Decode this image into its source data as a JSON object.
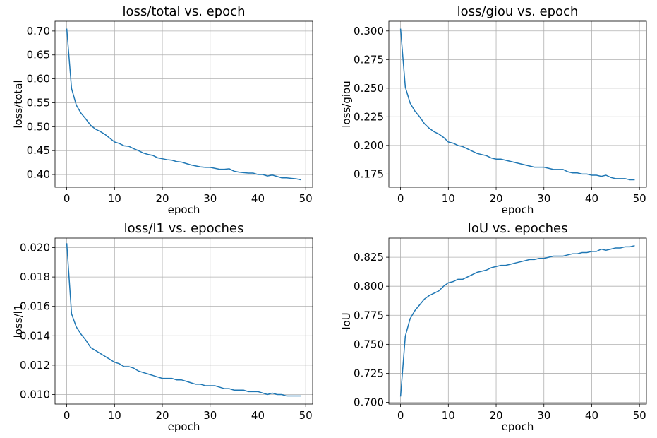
{
  "chart_data": [
    {
      "type": "line",
      "title": "loss/total vs. epoch",
      "xlabel": "epoch",
      "ylabel": "loss/total",
      "xlim": [
        -2.45,
        51.45
      ],
      "ylim": [
        0.3735,
        0.7205
      ],
      "xticks": [
        0,
        10,
        20,
        30,
        40,
        50
      ],
      "xtick_labels": [
        "0",
        "10",
        "20",
        "30",
        "40",
        "50"
      ],
      "yticks": [
        0.4,
        0.45,
        0.5,
        0.55,
        0.6,
        0.65,
        0.7
      ],
      "ytick_labels": [
        "0.40",
        "0.45",
        "0.50",
        "0.55",
        "0.60",
        "0.65",
        "0.70"
      ],
      "grid": true,
      "color": "#1f77b4",
      "x": [
        0,
        1,
        2,
        3,
        4,
        5,
        6,
        7,
        8,
        9,
        10,
        11,
        12,
        13,
        14,
        15,
        16,
        17,
        18,
        19,
        20,
        21,
        22,
        23,
        24,
        25,
        26,
        27,
        28,
        29,
        30,
        31,
        32,
        33,
        34,
        35,
        36,
        37,
        38,
        39,
        40,
        41,
        42,
        43,
        44,
        45,
        46,
        47,
        48,
        49
      ],
      "y": [
        0.705,
        0.58,
        0.545,
        0.528,
        0.516,
        0.503,
        0.495,
        0.49,
        0.484,
        0.476,
        0.468,
        0.465,
        0.46,
        0.459,
        0.454,
        0.45,
        0.445,
        0.442,
        0.44,
        0.435,
        0.433,
        0.431,
        0.43,
        0.427,
        0.426,
        0.423,
        0.42,
        0.418,
        0.416,
        0.415,
        0.415,
        0.413,
        0.411,
        0.411,
        0.412,
        0.407,
        0.405,
        0.404,
        0.403,
        0.403,
        0.4,
        0.4,
        0.397,
        0.399,
        0.396,
        0.393,
        0.393,
        0.392,
        0.391,
        0.389
      ]
    },
    {
      "type": "line",
      "title": "loss/giou vs. epoch",
      "xlabel": "epoch",
      "ylabel": "loss/giou",
      "xlim": [
        -2.45,
        51.45
      ],
      "ylim": [
        0.1635,
        0.3085
      ],
      "xticks": [
        0,
        10,
        20,
        30,
        40,
        50
      ],
      "xtick_labels": [
        "0",
        "10",
        "20",
        "30",
        "40",
        "50"
      ],
      "yticks": [
        0.175,
        0.2,
        0.225,
        0.25,
        0.275,
        0.3
      ],
      "ytick_labels": [
        "0.175",
        "0.200",
        "0.225",
        "0.250",
        "0.275",
        "0.300"
      ],
      "grid": true,
      "color": "#1f77b4",
      "x": [
        0,
        1,
        2,
        3,
        4,
        5,
        6,
        7,
        8,
        9,
        10,
        11,
        12,
        13,
        14,
        15,
        16,
        17,
        18,
        19,
        20,
        21,
        22,
        23,
        24,
        25,
        26,
        27,
        28,
        29,
        30,
        31,
        32,
        33,
        34,
        35,
        36,
        37,
        38,
        39,
        40,
        41,
        42,
        43,
        44,
        45,
        46,
        47,
        48,
        49
      ],
      "y": [
        0.302,
        0.251,
        0.237,
        0.23,
        0.225,
        0.219,
        0.215,
        0.212,
        0.21,
        0.207,
        0.203,
        0.202,
        0.2,
        0.199,
        0.197,
        0.195,
        0.193,
        0.192,
        0.191,
        0.189,
        0.188,
        0.188,
        0.187,
        0.186,
        0.185,
        0.184,
        0.183,
        0.182,
        0.181,
        0.181,
        0.181,
        0.18,
        0.179,
        0.179,
        0.179,
        0.177,
        0.176,
        0.176,
        0.175,
        0.175,
        0.174,
        0.174,
        0.173,
        0.174,
        0.172,
        0.171,
        0.171,
        0.171,
        0.17,
        0.17
      ]
    },
    {
      "type": "line",
      "title": "loss/l1 vs. epoches",
      "xlabel": "epoch",
      "ylabel": "loss/l1",
      "xlim": [
        -2.45,
        51.45
      ],
      "ylim": [
        0.00935,
        0.02065
      ],
      "xticks": [
        0,
        10,
        20,
        30,
        40,
        50
      ],
      "xtick_labels": [
        "0",
        "10",
        "20",
        "30",
        "40",
        "50"
      ],
      "yticks": [
        0.01,
        0.012,
        0.014,
        0.016,
        0.018,
        0.02
      ],
      "ytick_labels": [
        "0.010",
        "0.012",
        "0.014",
        "0.016",
        "0.018",
        "0.020"
      ],
      "grid": true,
      "color": "#1f77b4",
      "x": [
        0,
        1,
        2,
        3,
        4,
        5,
        6,
        7,
        8,
        9,
        10,
        11,
        12,
        13,
        14,
        15,
        16,
        17,
        18,
        19,
        20,
        21,
        22,
        23,
        24,
        25,
        26,
        27,
        28,
        29,
        30,
        31,
        32,
        33,
        34,
        35,
        36,
        37,
        38,
        39,
        40,
        41,
        42,
        43,
        44,
        45,
        46,
        47,
        48,
        49
      ],
      "y": [
        0.0203,
        0.0155,
        0.0146,
        0.0141,
        0.0137,
        0.0132,
        0.013,
        0.0128,
        0.0126,
        0.0124,
        0.0122,
        0.0121,
        0.0119,
        0.0119,
        0.0118,
        0.0116,
        0.0115,
        0.0114,
        0.0113,
        0.0112,
        0.0111,
        0.0111,
        0.0111,
        0.011,
        0.011,
        0.0109,
        0.0108,
        0.0107,
        0.0107,
        0.0106,
        0.0106,
        0.0106,
        0.0105,
        0.0104,
        0.0104,
        0.0103,
        0.0103,
        0.0103,
        0.0102,
        0.0102,
        0.0102,
        0.0101,
        0.01,
        0.0101,
        0.01,
        0.01,
        0.0099,
        0.0099,
        0.0099,
        0.0099
      ]
    },
    {
      "type": "line",
      "title": "IoU vs. epoches",
      "xlabel": "epoch",
      "ylabel": "IoU",
      "xlim": [
        -2.45,
        51.45
      ],
      "ylim": [
        0.6985,
        0.8415
      ],
      "xticks": [
        0,
        10,
        20,
        30,
        40,
        50
      ],
      "xtick_labels": [
        "0",
        "10",
        "20",
        "30",
        "40",
        "50"
      ],
      "yticks": [
        0.7,
        0.725,
        0.75,
        0.775,
        0.8,
        0.825
      ],
      "ytick_labels": [
        "0.700",
        "0.725",
        "0.750",
        "0.775",
        "0.800",
        "0.825"
      ],
      "grid": true,
      "color": "#1f77b4",
      "x": [
        0,
        1,
        2,
        3,
        4,
        5,
        6,
        7,
        8,
        9,
        10,
        11,
        12,
        13,
        14,
        15,
        16,
        17,
        18,
        19,
        20,
        21,
        22,
        23,
        24,
        25,
        26,
        27,
        28,
        29,
        30,
        31,
        32,
        33,
        34,
        35,
        36,
        37,
        38,
        39,
        40,
        41,
        42,
        43,
        44,
        45,
        46,
        47,
        48,
        49
      ],
      "y": [
        0.705,
        0.757,
        0.772,
        0.779,
        0.784,
        0.789,
        0.792,
        0.794,
        0.796,
        0.8,
        0.803,
        0.804,
        0.806,
        0.806,
        0.808,
        0.81,
        0.812,
        0.813,
        0.814,
        0.816,
        0.817,
        0.818,
        0.818,
        0.819,
        0.82,
        0.821,
        0.822,
        0.823,
        0.823,
        0.824,
        0.824,
        0.825,
        0.826,
        0.826,
        0.826,
        0.827,
        0.828,
        0.828,
        0.829,
        0.829,
        0.83,
        0.83,
        0.832,
        0.831,
        0.832,
        0.833,
        0.833,
        0.834,
        0.834,
        0.835
      ]
    }
  ]
}
